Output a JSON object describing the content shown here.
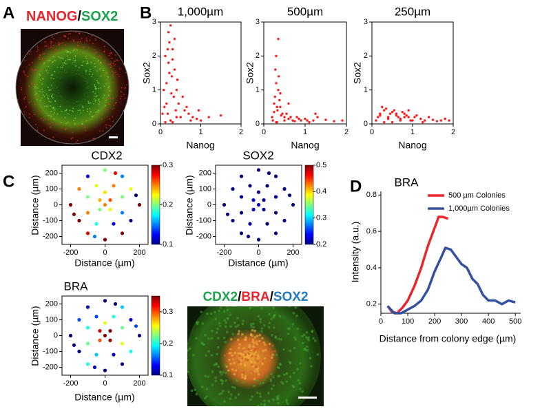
{
  "panel_labels": [
    "A",
    "B",
    "C",
    "D"
  ],
  "images": [
    {
      "title": [
        {
          "text": "NANOG",
          "color": "#e8262b"
        },
        {
          "text": "/",
          "color": "#000000"
        },
        {
          "text": "SOX2",
          "color": "#1aa34a"
        }
      ]
    },
    {
      "title": [
        {
          "text": "CDX2",
          "color": "#1aa34a"
        },
        {
          "text": "/",
          "color": "#000000"
        },
        {
          "text": "BRA",
          "color": "#e8262b"
        },
        {
          "text": "/",
          "color": "#000000"
        },
        {
          "text": "SOX2",
          "color": "#1f7ac2"
        }
      ]
    }
  ],
  "chart_data": [
    {
      "type": "scatter",
      "title": "1,000µm",
      "x_label": "Nanog",
      "y_label": "Sox2",
      "color": "#ff1a1a",
      "x": [
        0.1,
        0.15,
        0.2,
        0.22,
        0.25,
        0.3,
        0.35,
        0.4,
        0.12,
        0.18,
        0.28,
        0.33,
        0.38,
        0.45,
        0.5,
        0.08,
        0.2,
        0.3,
        0.25,
        0.15,
        0.35,
        0.42,
        0.6,
        0.7,
        0.8,
        0.9,
        1.0,
        1.2,
        1.5,
        0.55,
        0.65,
        0.75,
        0.3,
        0.22,
        0.4,
        0.18,
        0.27,
        0.12,
        0.05,
        0.95
      ],
      "y": [
        0.5,
        1.2,
        1.8,
        2.4,
        2.9,
        2.2,
        1.6,
        1.0,
        2.0,
        0.3,
        1.4,
        0.8,
        0.4,
        0.6,
        0.2,
        1.0,
        2.7,
        1.9,
        0.1,
        0.6,
        2.5,
        1.3,
        0.4,
        0.3,
        0.2,
        0.15,
        0.1,
        0.2,
        0.25,
        0.8,
        0.5,
        0.1,
        0.05,
        1.5,
        0.2,
        2.2,
        0.9,
        0.05,
        0.3,
        0.4
      ],
      "xlim": [
        0,
        2
      ],
      "ylim": [
        0,
        3
      ],
      "xticks": [
        0,
        1,
        2
      ],
      "yticks": [
        0,
        1,
        2,
        3
      ]
    },
    {
      "type": "scatter",
      "title": "500µm",
      "x_label": "Nanog",
      "y_label": "Sox2",
      "color": "#ff1a1a",
      "x": [
        0.2,
        0.25,
        0.3,
        0.35,
        0.4,
        0.28,
        0.33,
        0.22,
        0.38,
        0.45,
        0.5,
        0.6,
        0.7,
        0.8,
        0.9,
        1.0,
        1.1,
        1.2,
        1.3,
        1.5,
        1.7,
        1.9,
        0.3,
        0.35,
        0.27,
        0.32,
        0.42,
        0.55,
        0.65,
        0.75,
        0.85,
        1.05,
        0.3,
        0.36,
        0.25,
        0.4,
        0.5,
        0.32,
        0.6,
        1.25
      ],
      "y": [
        0.2,
        0.6,
        1.2,
        2.5,
        0.9,
        1.6,
        0.4,
        0.1,
        0.7,
        0.3,
        0.2,
        0.15,
        0.1,
        0.2,
        0.1,
        0.15,
        0.05,
        0.1,
        0.2,
        0.12,
        0.08,
        0.1,
        2.0,
        1.0,
        0.8,
        0.5,
        0.25,
        0.3,
        0.2,
        0.08,
        0.15,
        0.1,
        0.05,
        1.4,
        0.35,
        0.5,
        0.1,
        0.05,
        0.6,
        0.3
      ],
      "xlim": [
        0,
        2
      ],
      "ylim": [
        0,
        3
      ],
      "xticks": [
        0,
        1,
        2
      ],
      "yticks": [
        0,
        1,
        2,
        3
      ]
    },
    {
      "type": "scatter",
      "title": "250µm",
      "x_label": "Nanog",
      "y_label": "Sox2",
      "color": "#ff1a1a",
      "x": [
        0.1,
        0.2,
        0.3,
        0.4,
        0.5,
        0.6,
        0.7,
        0.8,
        0.9,
        1.0,
        1.1,
        1.2,
        1.3,
        1.4,
        1.5,
        1.6,
        1.7,
        1.8,
        1.9,
        0.15,
        0.25,
        0.35,
        0.45,
        0.55,
        0.65,
        0.75,
        0.85,
        0.95,
        1.05,
        0.3,
        0.5,
        0.7,
        0.2,
        0.4,
        0.6,
        1.25,
        0.8,
        0.9
      ],
      "y": [
        0.1,
        0.3,
        0.4,
        0.2,
        0.35,
        0.25,
        0.15,
        0.3,
        0.2,
        0.1,
        0.25,
        0.15,
        0.1,
        0.2,
        0.12,
        0.08,
        0.1,
        0.15,
        0.1,
        0.2,
        0.5,
        0.45,
        0.3,
        0.4,
        0.2,
        0.35,
        0.25,
        0.1,
        0.2,
        0.05,
        0.05,
        0.1,
        0.25,
        0.15,
        0.3,
        0.05,
        0.2,
        0.4
      ],
      "xlim": [
        0,
        2
      ],
      "ylim": [
        0,
        3
      ],
      "xticks": [
        0,
        1,
        2
      ],
      "yticks": [
        0,
        1,
        2,
        3
      ]
    },
    {
      "type": "scatter",
      "title": "CDX2",
      "x_label": "Distance (µm)",
      "y_label": "Distance (µm)",
      "colormap": "jet",
      "x": [
        -200,
        -150,
        -150,
        -100,
        -100,
        0,
        0,
        100,
        100,
        150,
        150,
        200,
        -100,
        -100,
        -50,
        -50,
        50,
        50,
        100,
        100,
        -30,
        30,
        -30,
        30,
        0,
        -180,
        180,
        60,
        -60,
        0
      ],
      "y": [
        0,
        100,
        -100,
        180,
        -180,
        220,
        -220,
        180,
        -180,
        100,
        -100,
        0,
        50,
        -50,
        120,
        -120,
        120,
        -120,
        50,
        -50,
        30,
        30,
        -30,
        -30,
        0,
        -60,
        60,
        200,
        -200,
        80
      ],
      "values": [
        0.3,
        0.25,
        0.3,
        0.12,
        0.28,
        0.2,
        0.3,
        0.15,
        0.3,
        0.22,
        0.1,
        0.3,
        0.2,
        0.25,
        0.22,
        0.18,
        0.25,
        0.12,
        0.2,
        0.15,
        0.24,
        0.26,
        0.2,
        0.22,
        0.25,
        0.3,
        0.1,
        0.28,
        0.15,
        0.23
      ],
      "xlim": [
        -250,
        250
      ],
      "ylim": [
        -250,
        250
      ],
      "xticks": [
        -200,
        0,
        200
      ],
      "yticks": [
        -200,
        -100,
        0,
        100,
        200
      ],
      "clim": [
        0.1,
        0.3
      ],
      "cticks": [
        0.1,
        0.2,
        0.3
      ]
    },
    {
      "type": "scatter",
      "title": "SOX2",
      "x_label": "Distance (µm)",
      "y_label": "Distance (µm)",
      "colormap": "jet",
      "x": [
        -200,
        -150,
        -150,
        -100,
        -100,
        0,
        0,
        100,
        100,
        150,
        150,
        200,
        -100,
        -100,
        -50,
        -50,
        50,
        50,
        100,
        100,
        -30,
        30,
        -30,
        30,
        0,
        -180,
        180,
        60,
        -60,
        0
      ],
      "y": [
        0,
        100,
        -100,
        180,
        -180,
        220,
        -220,
        180,
        -180,
        100,
        -100,
        0,
        50,
        -50,
        120,
        -120,
        120,
        -120,
        50,
        -50,
        30,
        30,
        -30,
        -30,
        0,
        -60,
        60,
        200,
        -200,
        80
      ],
      "values": [
        0.2,
        0.2,
        0.2,
        0.2,
        0.2,
        0.2,
        0.2,
        0.2,
        0.2,
        0.2,
        0.2,
        0.2,
        0.21,
        0.2,
        0.2,
        0.21,
        0.2,
        0.2,
        0.21,
        0.2,
        0.22,
        0.21,
        0.22,
        0.21,
        0.23,
        0.2,
        0.2,
        0.2,
        0.2,
        0.21
      ],
      "xlim": [
        -250,
        250
      ],
      "ylim": [
        -250,
        250
      ],
      "xticks": [
        -200,
        0,
        200
      ],
      "yticks": [
        -200,
        -100,
        0,
        100,
        200
      ],
      "clim": [
        0.2,
        0.5
      ],
      "cticks": [
        0.2,
        0.3,
        0.4,
        0.5
      ]
    },
    {
      "type": "scatter",
      "title": "BRA",
      "x_label": "Distance (µm)",
      "y_label": "Distance (µm)",
      "colormap": "jet",
      "x": [
        -200,
        -150,
        -150,
        -100,
        -100,
        0,
        0,
        100,
        100,
        150,
        150,
        200,
        -100,
        -100,
        -50,
        -50,
        50,
        50,
        100,
        100,
        -30,
        30,
        -30,
        30,
        0,
        -180,
        180,
        60,
        -60,
        0
      ],
      "y": [
        0,
        100,
        -100,
        180,
        -180,
        220,
        -220,
        180,
        -180,
        100,
        -100,
        0,
        50,
        -50,
        120,
        -120,
        120,
        -120,
        50,
        -50,
        30,
        30,
        -30,
        -30,
        0,
        -60,
        60,
        200,
        -200,
        80
      ],
      "values": [
        0.1,
        0.15,
        0.1,
        0.12,
        0.2,
        0.1,
        0.1,
        0.18,
        0.1,
        0.12,
        0.2,
        0.1,
        0.2,
        0.22,
        0.15,
        0.18,
        0.2,
        0.12,
        0.22,
        0.25,
        0.33,
        0.35,
        0.3,
        0.34,
        0.35,
        0.1,
        0.15,
        0.1,
        0.12,
        0.25
      ],
      "xlim": [
        -250,
        250
      ],
      "ylim": [
        -250,
        250
      ],
      "xticks": [
        -200,
        0,
        200
      ],
      "yticks": [
        -200,
        -100,
        0,
        100,
        200
      ],
      "clim": [
        0.1,
        0.35
      ],
      "cticks": [
        0.1,
        0.2,
        0.3
      ]
    },
    {
      "type": "line",
      "title": "BRA",
      "x_label": "Distance from colony edge (µm)",
      "y_label": "Intensity (a.u.)",
      "legend": "upper right",
      "series": [
        {
          "name": "500 µm Colonies",
          "color": "#e8262b",
          "x": [
            25,
            40,
            60,
            80,
            100,
            125,
            150,
            175,
            200,
            215,
            230,
            250
          ],
          "values": [
            0.19,
            0.16,
            0.15,
            0.18,
            0.22,
            0.3,
            0.4,
            0.52,
            0.62,
            0.68,
            0.68,
            0.67
          ]
        },
        {
          "name": "1,000µm Colonies",
          "color": "#3450a0",
          "x": [
            25,
            50,
            75,
            100,
            125,
            150,
            175,
            200,
            225,
            240,
            260,
            280,
            300,
            320,
            340,
            360,
            380,
            400,
            425,
            450,
            475,
            500
          ],
          "values": [
            0.19,
            0.15,
            0.15,
            0.17,
            0.19,
            0.22,
            0.28,
            0.38,
            0.46,
            0.51,
            0.5,
            0.46,
            0.42,
            0.4,
            0.34,
            0.31,
            0.25,
            0.22,
            0.22,
            0.2,
            0.22,
            0.21
          ]
        }
      ],
      "xlim": [
        0,
        520
      ],
      "ylim": [
        0.15,
        0.82
      ],
      "xticks": [
        0,
        100,
        200,
        300,
        400,
        500
      ],
      "yticks": [
        0.2,
        0.4,
        0.6,
        0.8
      ]
    }
  ]
}
